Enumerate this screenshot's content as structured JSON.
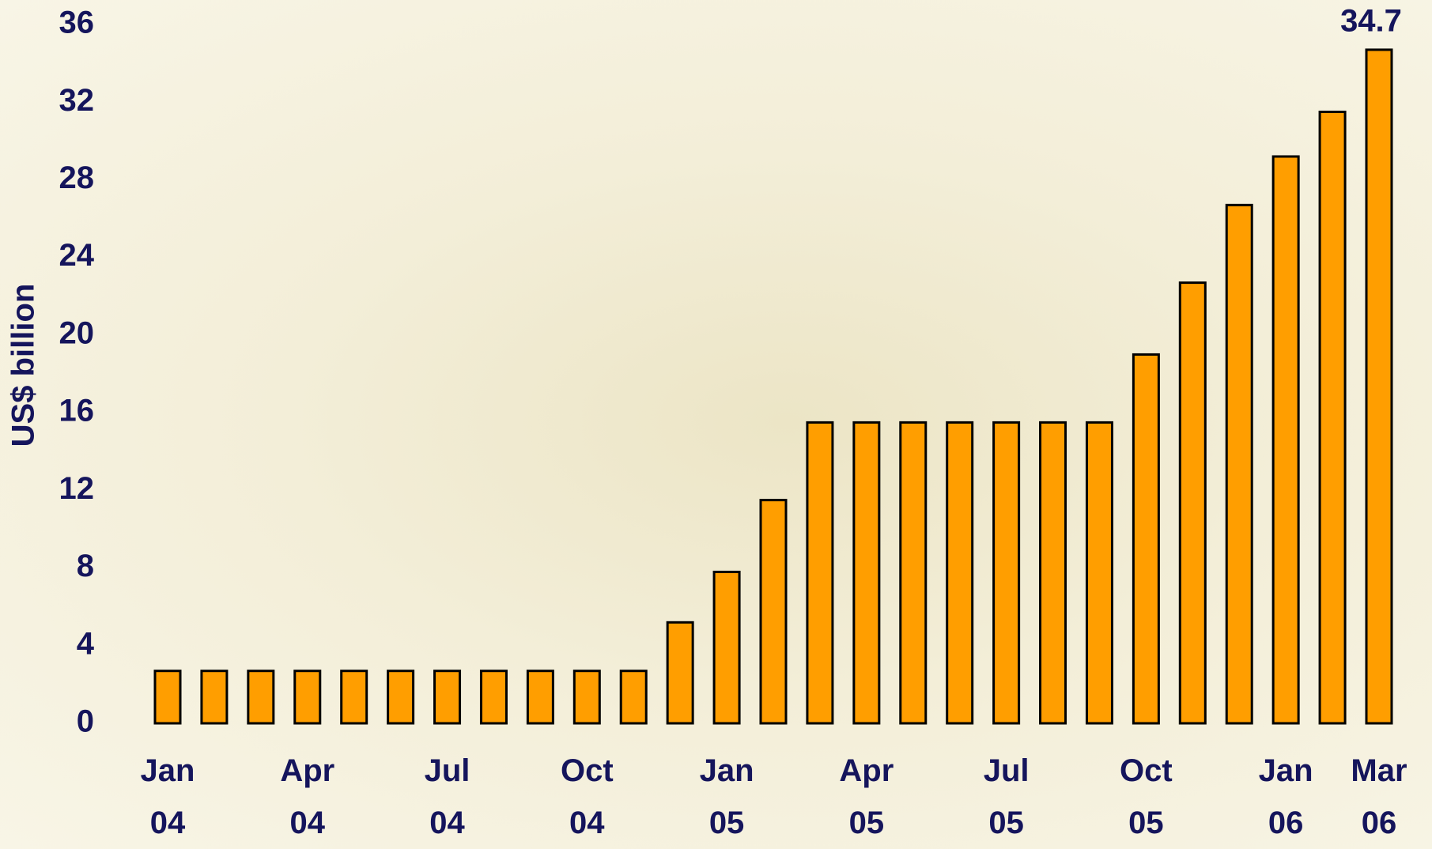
{
  "chart_data": {
    "type": "bar",
    "y_label": "US$ billion",
    "categories": [
      "Jan 04",
      null,
      null,
      "Apr 04",
      null,
      null,
      "Jul 04",
      null,
      null,
      "Oct 04",
      null,
      null,
      "Jan 05",
      null,
      null,
      "Apr 05",
      null,
      null,
      "Jul 05",
      null,
      null,
      "Oct 05",
      null,
      null,
      "Jan 06",
      null,
      "Mar 06"
    ],
    "values": [
      2.7,
      2.7,
      2.7,
      2.7,
      2.7,
      2.7,
      2.7,
      2.7,
      2.7,
      2.7,
      2.7,
      5.2,
      7.8,
      11.5,
      15.5,
      15.5,
      15.5,
      15.5,
      15.5,
      15.5,
      15.5,
      19,
      22.7,
      26.7,
      29.2,
      31.5,
      34.7
    ],
    "value_labels": [
      null,
      null,
      null,
      null,
      null,
      null,
      null,
      null,
      null,
      null,
      null,
      null,
      null,
      null,
      null,
      null,
      null,
      null,
      null,
      null,
      null,
      null,
      null,
      null,
      null,
      null,
      "34.7"
    ],
    "color": "#ff9e00",
    "ylim": [
      0,
      36
    ],
    "yticks": [
      0,
      4,
      8,
      12,
      16,
      20,
      24,
      28,
      32,
      36
    ],
    "grid": false
  }
}
